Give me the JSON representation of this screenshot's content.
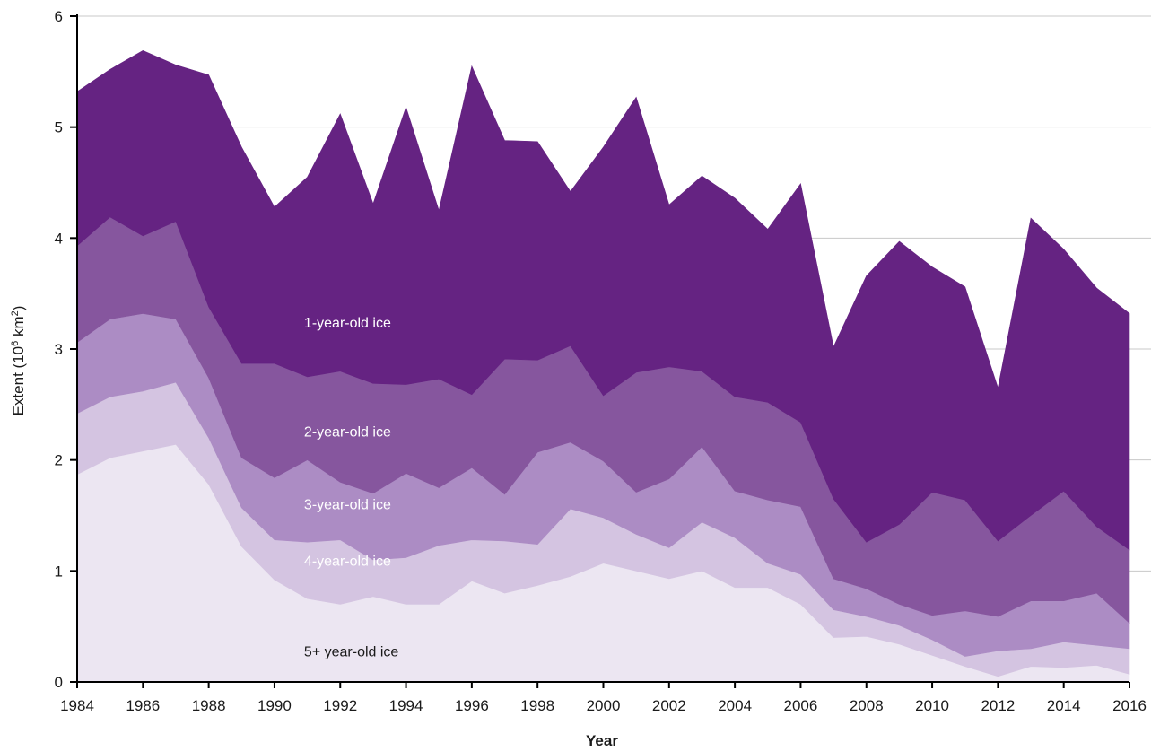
{
  "chart_data": {
    "type": "area",
    "stacked": true,
    "xlabel": "Year",
    "ylabel": "Extent (10",
    "ylabel_sup": "6",
    "ylabel_unit": " km",
    "ylabel_unit_sup": "2",
    "ylabel_close": ")",
    "xlim": [
      1984,
      2016
    ],
    "ylim": [
      0,
      6
    ],
    "grid": "horizontal",
    "x_ticks": [
      "1984",
      "1986",
      "1988",
      "1990",
      "1992",
      "1994",
      "1996",
      "1998",
      "2000",
      "2002",
      "2004",
      "2006",
      "2008",
      "2010",
      "2012",
      "2014",
      "2016"
    ],
    "y_ticks": [
      "0",
      "1",
      "2",
      "3",
      "4",
      "5",
      "6"
    ],
    "x": [
      1984,
      1985,
      1986,
      1987,
      1988,
      1989,
      1990,
      1991,
      1992,
      1993,
      1994,
      1995,
      1996,
      1997,
      1998,
      1999,
      2000,
      2001,
      2002,
      2003,
      2004,
      2005,
      2006,
      2007,
      2008,
      2009,
      2010,
      2011,
      2012,
      2013,
      2014,
      2015,
      2016
    ],
    "series": [
      {
        "name": "5+ year-old ice",
        "color": "#ece6f2",
        "label_color": "#1a1a1a",
        "values": [
          1.87,
          2.02,
          2.08,
          2.14,
          1.78,
          1.22,
          0.92,
          0.75,
          0.7,
          0.77,
          0.7,
          0.7,
          0.91,
          0.8,
          0.87,
          0.95,
          1.07,
          1.0,
          0.93,
          1.0,
          0.85,
          0.85,
          0.7,
          0.4,
          0.41,
          0.34,
          0.24,
          0.14,
          0.05,
          0.14,
          0.13,
          0.15,
          0.07
        ]
      },
      {
        "name": "4-year-old ice",
        "color": "#d4c4e1",
        "label_color": "#ffffff",
        "values": [
          0.55,
          0.55,
          0.54,
          0.56,
          0.42,
          0.35,
          0.36,
          0.51,
          0.58,
          0.33,
          0.42,
          0.53,
          0.37,
          0.47,
          0.37,
          0.61,
          0.41,
          0.33,
          0.28,
          0.44,
          0.45,
          0.22,
          0.27,
          0.25,
          0.18,
          0.17,
          0.14,
          0.09,
          0.23,
          0.16,
          0.23,
          0.18,
          0.23
        ]
      },
      {
        "name": "3-year-old ice",
        "color": "#ac8cc4",
        "label_color": "#ffffff",
        "values": [
          0.64,
          0.7,
          0.7,
          0.57,
          0.54,
          0.45,
          0.56,
          0.74,
          0.52,
          0.6,
          0.76,
          0.52,
          0.65,
          0.42,
          0.83,
          0.6,
          0.51,
          0.38,
          0.62,
          0.68,
          0.42,
          0.57,
          0.61,
          0.28,
          0.25,
          0.19,
          0.22,
          0.41,
          0.31,
          0.43,
          0.37,
          0.47,
          0.23
        ]
      },
      {
        "name": "2-year-old ice",
        "color": "#86569e",
        "label_color": "#ffffff",
        "values": [
          0.87,
          0.92,
          0.7,
          0.88,
          0.64,
          0.85,
          1.03,
          0.75,
          1.0,
          0.99,
          0.8,
          0.98,
          0.66,
          1.22,
          0.83,
          0.87,
          0.59,
          1.08,
          1.01,
          0.68,
          0.85,
          0.88,
          0.76,
          0.72,
          0.42,
          0.72,
          1.11,
          1.0,
          0.68,
          0.77,
          0.99,
          0.6,
          0.66
        ]
      },
      {
        "name": "1-year-old ice",
        "color": "#652382",
        "label_color": "#ffffff",
        "values": [
          1.39,
          1.33,
          1.67,
          1.41,
          2.09,
          1.95,
          1.41,
          1.8,
          2.32,
          1.62,
          2.5,
          1.52,
          2.96,
          1.97,
          1.97,
          1.39,
          2.24,
          2.48,
          1.46,
          1.76,
          1.79,
          1.56,
          2.15,
          1.37,
          2.4,
          2.55,
          2.03,
          1.92,
          1.38,
          2.68,
          2.18,
          2.15,
          2.13
        ]
      }
    ]
  }
}
